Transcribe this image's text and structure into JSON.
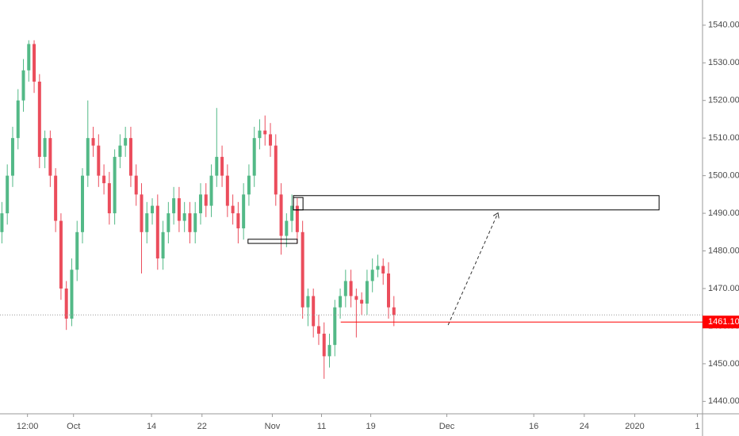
{
  "chart_data": {
    "type": "candlestick",
    "x": [
      -11.2,
      -10.36,
      -9.52,
      -8.68,
      -7.84,
      -7.0,
      -6.16,
      -5.32,
      -4.48,
      -3.64,
      -2.8,
      -1.96,
      -1.12,
      -0.28,
      0.56,
      1.4,
      2.24,
      3.08,
      3.92,
      4.76,
      5.6,
      6.44,
      7.28,
      8.12,
      8.96,
      9.8,
      10.64,
      11.48,
      12.32,
      13.16,
      14.0,
      14.84,
      15.68,
      16.52,
      17.36,
      18.2,
      19.04,
      19.88,
      20.72,
      21.56,
      22.4,
      23.24,
      24.08,
      24.92,
      25.76,
      26.6,
      27.44,
      28.28,
      29.12,
      29.96,
      30.8,
      31.64,
      32.48,
      33.32,
      34.16,
      35.0,
      35.84,
      36.68,
      37.52,
      38.36,
      39.2,
      40.04,
      40.88,
      41.72,
      42.56,
      43.4,
      44.24,
      45.08,
      45.92,
      46.76,
      47.6,
      48.44,
      49.28,
      50.12
    ],
    "open": [
      1485,
      1490,
      1500,
      1510,
      1520,
      1528,
      1535,
      1525,
      1505,
      1510,
      1500,
      1488,
      1470,
      1462,
      1475,
      1485,
      1500,
      1510,
      1508,
      1500,
      1498,
      1490,
      1505,
      1508,
      1510,
      1500,
      1495,
      1485,
      1490,
      1492,
      1478,
      1485,
      1490,
      1494,
      1488,
      1490,
      1485,
      1490,
      1495,
      1492,
      1500,
      1505,
      1500,
      1492,
      1490,
      1486,
      1495,
      1500,
      1510,
      1512,
      1511,
      1508,
      1495,
      1484,
      1488,
      1492,
      1485,
      1465,
      1468,
      1460,
      1458,
      1452,
      1455,
      1465,
      1468,
      1472,
      1468,
      1467,
      1466,
      1472,
      1475,
      1476,
      1474,
      1465
    ],
    "high": [
      1493,
      1503,
      1513,
      1523,
      1531,
      1536,
      1536,
      1527,
      1512,
      1512,
      1502,
      1490,
      1472,
      1478,
      1488,
      1502,
      1520,
      1513,
      1511,
      1503,
      1501,
      1507,
      1511,
      1513,
      1513,
      1503,
      1498,
      1493,
      1494,
      1495,
      1488,
      1493,
      1497,
      1497,
      1493,
      1493,
      1493,
      1498,
      1498,
      1503,
      1518,
      1508,
      1503,
      1495,
      1493,
      1498,
      1503,
      1513,
      1515,
      1516,
      1514,
      1511,
      1498,
      1490,
      1495,
      1494,
      1488,
      1470,
      1470,
      1463,
      1461,
      1458,
      1467,
      1470,
      1475,
      1475,
      1470,
      1469,
      1475,
      1478,
      1479,
      1478,
      1477,
      1468
    ],
    "low": [
      1482,
      1487,
      1497,
      1507,
      1517,
      1525,
      1522,
      1502,
      1502,
      1497,
      1485,
      1467,
      1459,
      1460,
      1472,
      1482,
      1497,
      1505,
      1497,
      1495,
      1487,
      1487,
      1502,
      1505,
      1497,
      1492,
      1474,
      1482,
      1487,
      1475,
      1475,
      1482,
      1487,
      1485,
      1485,
      1482,
      1482,
      1487,
      1489,
      1489,
      1497,
      1497,
      1489,
      1487,
      1482,
      1483,
      1492,
      1497,
      1507,
      1508,
      1505,
      1492,
      1479,
      1481,
      1485,
      1482,
      1462,
      1460,
      1457,
      1455,
      1446,
      1449,
      1452,
      1462,
      1465,
      1465,
      1457,
      1463,
      1463,
      1469,
      1473,
      1471,
      1462,
      1460
    ],
    "close": [
      1490,
      1500,
      1510,
      1520,
      1528,
      1535,
      1525,
      1505,
      1510,
      1500,
      1488,
      1470,
      1462,
      1475,
      1485,
      1500,
      1510,
      1508,
      1500,
      1498,
      1490,
      1505,
      1508,
      1510,
      1500,
      1495,
      1485,
      1490,
      1492,
      1478,
      1485,
      1490,
      1494,
      1488,
      1490,
      1485,
      1490,
      1495,
      1492,
      1500,
      1505,
      1500,
      1492,
      1490,
      1486,
      1495,
      1500,
      1510,
      1512,
      1511,
      1508,
      1495,
      1484,
      1488,
      1492,
      1485,
      1465,
      1468,
      1460,
      1458,
      1452,
      1455,
      1465,
      1468,
      1472,
      1468,
      1467,
      1466,
      1472,
      1475,
      1476,
      1474,
      1465,
      1463
    ],
    "up_color": "#53b987",
    "down_color": "#eb4d5c",
    "xlim": [
      -11.5,
      98.4
    ],
    "ylim": [
      1436.7,
      1546.7
    ],
    "xticks": [
      {
        "value": -7.2,
        "label": "12:00"
      },
      {
        "value": 0,
        "label": "Oct"
      },
      {
        "value": 12.2,
        "label": "14"
      },
      {
        "value": 20.1,
        "label": "22"
      },
      {
        "value": 31.1,
        "label": "Nov"
      },
      {
        "value": 38.8,
        "label": "11"
      },
      {
        "value": 46.5,
        "label": "19"
      },
      {
        "value": 58.4,
        "label": "Dec"
      },
      {
        "value": 72.0,
        "label": "16"
      },
      {
        "value": 79.9,
        "label": "24"
      },
      {
        "value": 87.8,
        "label": "2020"
      },
      {
        "value": 97.6,
        "label": "1"
      }
    ],
    "yticks": [
      {
        "value": 1440,
        "label": "1440.00"
      },
      {
        "value": 1450,
        "label": "1450.00"
      },
      {
        "value": 1460,
        "label": "1460.00"
      },
      {
        "value": 1470,
        "label": "1470.00"
      },
      {
        "value": 1480,
        "label": "1480.00"
      },
      {
        "value": 1490,
        "label": "1490.00"
      },
      {
        "value": 1500,
        "label": "1500.00"
      },
      {
        "value": 1510,
        "label": "1510.00"
      },
      {
        "value": 1520,
        "label": "1520.00"
      },
      {
        "value": 1530,
        "label": "1530.00"
      },
      {
        "value": 1540,
        "label": "1540.00"
      }
    ],
    "price_line": {
      "value": 1461.1,
      "label": "1461.10",
      "color": "#ff0000",
      "x_start": 41.8
    },
    "boxes": [
      {
        "x": [
          34.4,
          91.6
        ],
        "y": [
          1490.9,
          1494.7
        ]
      },
      {
        "x": [
          27.3,
          35.0
        ],
        "y": [
          1482.0,
          1483.1
        ]
      },
      {
        "x": [
          34.4,
          35.9
        ],
        "y": [
          1490.9,
          1494.2
        ]
      }
    ],
    "arrow": {
      "x": [
        58.6,
        66.4
      ],
      "y": [
        1460.3,
        1490.1
      ]
    }
  }
}
